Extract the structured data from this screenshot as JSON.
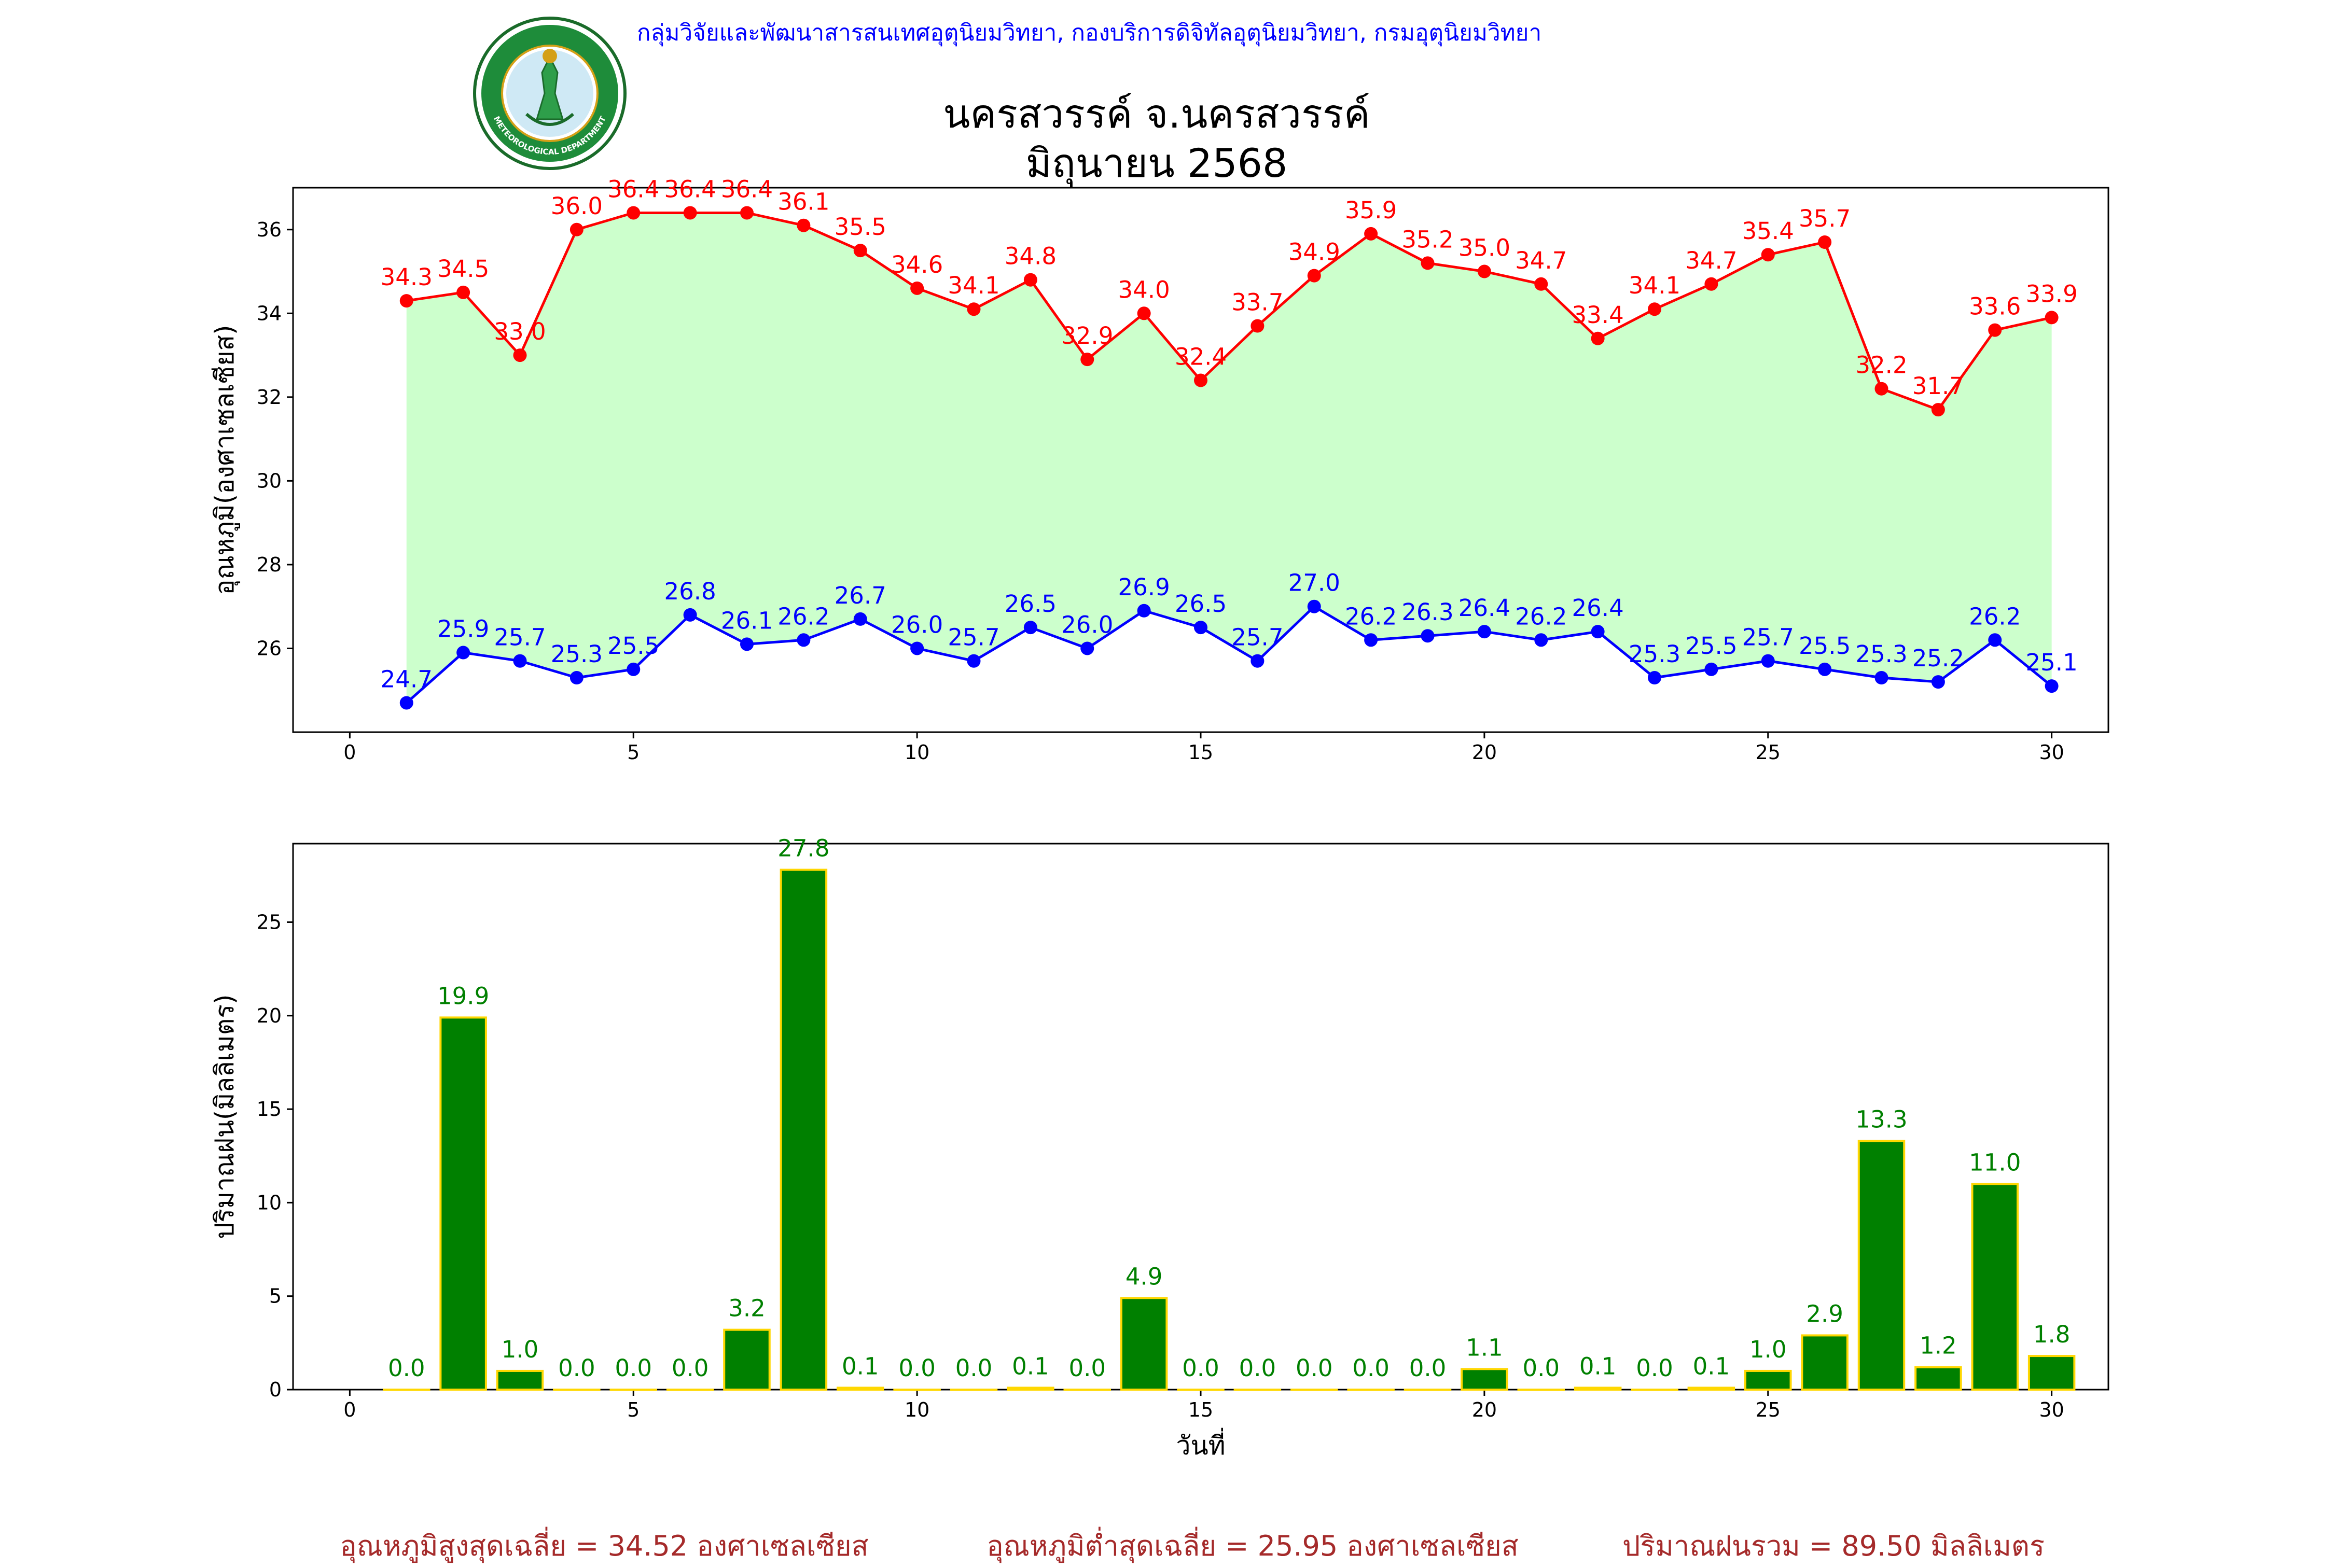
{
  "header": {
    "agency": "กลุ่มวิจัยและพัฒนาสารสนเทศอุตุนิยมวิทยา, กองบริการดิจิทัลอุตุนิยมวิทยา, กรมอุตุนิยมวิทยา",
    "station": "นครสวรรค์  จ.นครสวรรค์",
    "period": "มิถุนายน 2568",
    "logo_text_top": "กรมอุตุนิยมวิทยา",
    "logo_text_bottom": "METEOROLOGICAL DEPARTMENT"
  },
  "footer": {
    "avg_max": "อุณหภูมิสูงสุดเฉลี่ย = 34.52 องศาเซลเซียส",
    "avg_min": "อุณหภูมิต่ำสุดเฉลี่ย = 25.95 องศาเซลเซียส",
    "rain_total": "ปริมาณฝนรวม = 89.50 มิลลิเมตร"
  },
  "colors": {
    "max_line": "#ff0000",
    "min_line": "#0000ff",
    "fill": "#ccffcc",
    "bar": "#008000",
    "bar_edge": "#ffd700",
    "rain_label": "#008000",
    "footer": "#a52a2a",
    "agency": "#0000ff"
  },
  "chart_data": [
    {
      "type": "line",
      "ylabel": "อุณหภูมิ(องศาเซลเซียส)",
      "xlabel": "",
      "xlim": [
        -1,
        31
      ],
      "ylim": [
        24,
        37
      ],
      "xticks": [
        0,
        5,
        10,
        15,
        20,
        25,
        30
      ],
      "yticks": [
        26,
        28,
        30,
        32,
        34,
        36
      ],
      "fill_between_series": true,
      "x": [
        1,
        2,
        3,
        4,
        5,
        6,
        7,
        8,
        9,
        10,
        11,
        12,
        13,
        14,
        15,
        16,
        17,
        18,
        19,
        20,
        21,
        22,
        23,
        24,
        25,
        26,
        27,
        28,
        29,
        30
      ],
      "series": [
        {
          "key": "max",
          "values": [
            34.3,
            34.5,
            33.0,
            36.0,
            36.4,
            36.4,
            36.4,
            36.1,
            35.5,
            34.6,
            34.1,
            34.8,
            32.9,
            34.0,
            32.4,
            33.7,
            34.9,
            35.9,
            35.2,
            35.0,
            34.7,
            33.4,
            34.1,
            34.7,
            35.4,
            35.7,
            32.2,
            31.7,
            33.6,
            33.9
          ]
        },
        {
          "key": "min",
          "values": [
            24.7,
            25.9,
            25.7,
            25.3,
            25.5,
            26.8,
            26.1,
            26.2,
            26.7,
            26.0,
            25.7,
            26.5,
            26.0,
            26.9,
            26.5,
            25.7,
            27.0,
            26.2,
            26.3,
            26.4,
            26.2,
            26.4,
            25.3,
            25.5,
            25.7,
            25.5,
            25.3,
            25.2,
            26.2,
            25.1
          ]
        }
      ]
    },
    {
      "type": "bar",
      "ylabel": "ปริมาณฝน(มิลลิเมตร)",
      "xlabel": "วันที่",
      "xlim": [
        -1,
        31
      ],
      "ylim": [
        0,
        29.2
      ],
      "xticks": [
        0,
        5,
        10,
        15,
        20,
        25,
        30
      ],
      "yticks": [
        0,
        5,
        10,
        15,
        20,
        25
      ],
      "categories": [
        1,
        2,
        3,
        4,
        5,
        6,
        7,
        8,
        9,
        10,
        11,
        12,
        13,
        14,
        15,
        16,
        17,
        18,
        19,
        20,
        21,
        22,
        23,
        24,
        25,
        26,
        27,
        28,
        29,
        30
      ],
      "values": [
        0.0,
        19.9,
        1.0,
        0.0,
        0.0,
        0.0,
        3.2,
        27.8,
        0.1,
        0.0,
        0.0,
        0.1,
        0.0,
        4.9,
        0.0,
        0.0,
        0.0,
        0.0,
        0.0,
        1.1,
        0.0,
        0.1,
        0.0,
        0.1,
        1.0,
        2.9,
        13.3,
        1.2,
        11.0,
        1.8
      ]
    }
  ]
}
